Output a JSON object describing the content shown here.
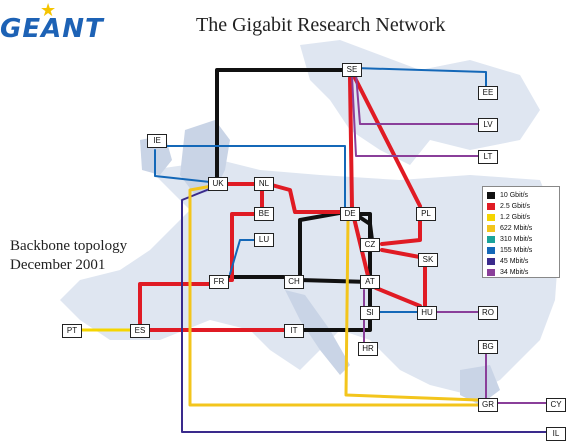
{
  "header": {
    "logo_text": "GEANT",
    "title": "The Gigabit Research Network"
  },
  "caption": {
    "line1": "Backbone topology",
    "line2": "December 2001"
  },
  "colors": {
    "10G": "#111111",
    "2.5G": "#e01b24",
    "1.2G": "#f5d500",
    "622M": "#f3c51c",
    "310M": "#1aa39a",
    "155M": "#1468b8",
    "45M": "#3a2a8c",
    "34M": "#8a3f9a",
    "map_land": "#dfe6f1",
    "map_land_dark": "#c9d4e6"
  },
  "legend": [
    {
      "label": "10 Gbit/s",
      "color": "#111111"
    },
    {
      "label": "2.5 Gbit/s",
      "color": "#e01b24"
    },
    {
      "label": "1.2 Gbit/s",
      "color": "#f5d500"
    },
    {
      "label": "622 Mbit/s",
      "color": "#f3c51c"
    },
    {
      "label": "310 Mbit/s",
      "color": "#1aa39a"
    },
    {
      "label": "155 Mbit/s",
      "color": "#1468b8"
    },
    {
      "label": "45 Mbit/s",
      "color": "#3a2a8c"
    },
    {
      "label": "34 Mbit/s",
      "color": "#8a3f9a"
    }
  ],
  "nodes": {
    "SE": "SE",
    "EE": "EE",
    "LV": "LV",
    "LT": "LT",
    "IE": "IE",
    "UK": "UK",
    "NL": "NL",
    "BE": "BE",
    "LU": "LU",
    "DE": "DE",
    "PL": "PL",
    "CZ": "CZ",
    "SK": "SK",
    "FR": "FR",
    "CH": "CH",
    "AT": "AT",
    "SI": "SI",
    "HU": "HU",
    "RO": "RO",
    "PT": "PT",
    "ES": "ES",
    "IT": "IT",
    "HR": "HR",
    "BG": "BG",
    "GR": "GR",
    "CY": "CY",
    "IL": "IL"
  }
}
